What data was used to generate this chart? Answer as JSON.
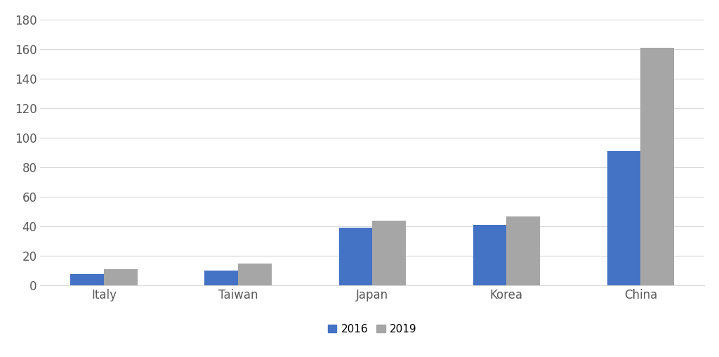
{
  "categories": [
    "Italy",
    "Taiwan",
    "Japan",
    "Korea",
    "China"
  ],
  "values_2016": [
    8,
    10,
    39,
    41,
    91
  ],
  "values_2019": [
    11,
    15,
    44,
    47,
    161
  ],
  "color_2016": "#4472c4",
  "color_2019": "#a6a6a6",
  "ylim": [
    0,
    180
  ],
  "yticks": [
    0,
    20,
    40,
    60,
    80,
    100,
    120,
    140,
    160,
    180
  ],
  "legend_labels": [
    "2016",
    "2019"
  ],
  "background_color": "#ffffff",
  "bar_width": 0.25,
  "grid_color": "#d9d9d9",
  "tick_fontsize": 12,
  "legend_fontsize": 11
}
